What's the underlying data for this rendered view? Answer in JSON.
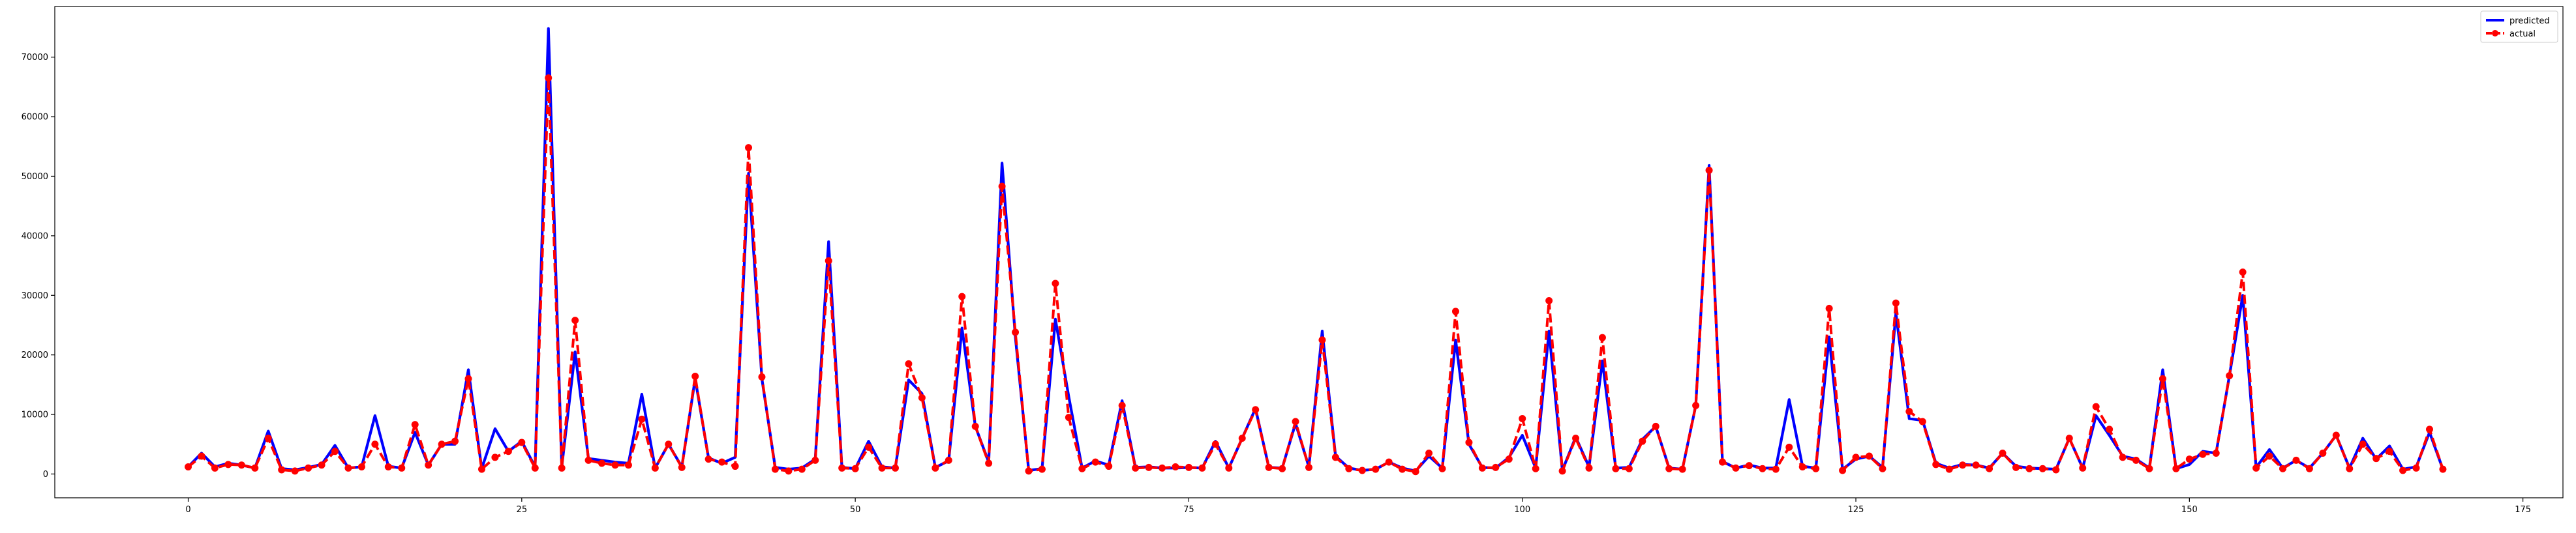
{
  "chart_data": {
    "type": "line",
    "title": "",
    "xlabel": "",
    "ylabel": "",
    "xlim": [
      -10,
      178
    ],
    "ylim": [
      -4000,
      78500
    ],
    "grid": false,
    "legend_position": "top-right",
    "xticks": [
      0,
      25,
      50,
      75,
      100,
      125,
      150,
      175
    ],
    "yticks": [
      0,
      10000,
      20000,
      30000,
      40000,
      50000,
      60000,
      70000
    ],
    "xtick_labels": [
      "0",
      "25",
      "50",
      "75",
      "100",
      "125",
      "150",
      "175"
    ],
    "ytick_labels": [
      "0",
      "10000",
      "20000",
      "30000",
      "40000",
      "50000",
      "60000",
      "70000"
    ],
    "series": [
      {
        "name": "predicted",
        "color": "#0000ff",
        "style": "solid",
        "marker": "none",
        "values": [
          1200,
          3500,
          1200,
          1800,
          1500,
          1000,
          7200,
          900,
          700,
          1100,
          1600,
          4800,
          1000,
          1200,
          9800,
          1300,
          1000,
          7000,
          1500,
          5000,
          5000,
          17500,
          900,
          7600,
          3800,
          5500,
          1200,
          74800,
          1200,
          20500,
          2600,
          2300,
          2000,
          1800,
          13400,
          1000,
          5000,
          1200,
          16000,
          2700,
          1800,
          2800,
          50500,
          16000,
          1100,
          800,
          1000,
          2500,
          39000,
          1100,
          900,
          5500,
          1200,
          1000,
          15800,
          13500,
          1100,
          2200,
          24500,
          8000,
          2000,
          52200,
          23000,
          600,
          900,
          26000,
          13000,
          1000,
          2200,
          1500,
          12300,
          1100,
          1200,
          1000,
          1000,
          1100,
          1000,
          5500,
          1000,
          6000,
          11000,
          1100,
          1000,
          8500,
          1200,
          24000,
          3000,
          1000,
          600,
          800,
          2000,
          1000,
          500,
          3000,
          1000,
          22500,
          5000,
          1100,
          1000,
          2800,
          6500,
          1000,
          24000,
          600,
          6200,
          1200,
          19000,
          1000,
          1100,
          5800,
          8000,
          1000,
          800,
          11500,
          51800,
          2100,
          1000,
          1500,
          1000,
          1000,
          12500,
          1300,
          1000,
          23000,
          800,
          2500,
          3000,
          1100,
          27000,
          9300,
          9000,
          1800,
          1000,
          1600,
          1500,
          1000,
          3500,
          1300,
          1000,
          900,
          800,
          6000,
          1000,
          9800,
          6500,
          3000,
          2500,
          1000,
          17500,
          900,
          1600,
          3800,
          3500,
          16500,
          30000,
          1100,
          4100,
          1000,
          2300,
          1000,
          3500,
          6500,
          1000,
          6000,
          2500,
          4700,
          800,
          1200,
          7000,
          800
        ]
      },
      {
        "name": "actual",
        "color": "#ff0000",
        "style": "dashed",
        "marker": "circle",
        "values": [
          1200,
          3000,
          1000,
          1600,
          1500,
          1000,
          6000,
          700,
          500,
          1000,
          1500,
          3800,
          1000,
          1200,
          5000,
          1200,
          1000,
          8300,
          1500,
          5000,
          5500,
          16000,
          800,
          2800,
          3800,
          5300,
          1000,
          66500,
          1000,
          25800,
          2300,
          1800,
          1500,
          1500,
          9200,
          1000,
          5000,
          1100,
          16400,
          2500,
          2000,
          1300,
          54800,
          16300,
          800,
          500,
          800,
          2300,
          35800,
          1000,
          900,
          4500,
          1000,
          1000,
          18500,
          12800,
          1000,
          2300,
          29800,
          8000,
          1800,
          48300,
          23800,
          500,
          800,
          32000,
          9500,
          900,
          2000,
          1300,
          11500,
          1000,
          1100,
          1000,
          1200,
          1100,
          1000,
          5000,
          1000,
          6000,
          10800,
          1100,
          900,
          8800,
          1100,
          22500,
          2800,
          900,
          600,
          800,
          2000,
          800,
          400,
          3500,
          900,
          27300,
          5300,
          1000,
          1100,
          2500,
          9300,
          900,
          29100,
          500,
          6000,
          1000,
          22900,
          900,
          900,
          5500,
          8000,
          900,
          800,
          11500,
          51000,
          2000,
          1000,
          1400,
          900,
          800,
          4500,
          1200,
          900,
          27800,
          600,
          2800,
          3000,
          900,
          28700,
          10500,
          8800,
          1600,
          800,
          1500,
          1500,
          900,
          3500,
          1100,
          900,
          900,
          700,
          6000,
          1000,
          11300,
          7500,
          2800,
          2300,
          900,
          16000,
          900,
          2500,
          3300,
          3500,
          16500,
          33900,
          1000,
          3000,
          900,
          2300,
          900,
          3500,
          6500,
          900,
          5000,
          2600,
          3800,
          600,
          1000,
          7500,
          800
        ]
      }
    ]
  }
}
